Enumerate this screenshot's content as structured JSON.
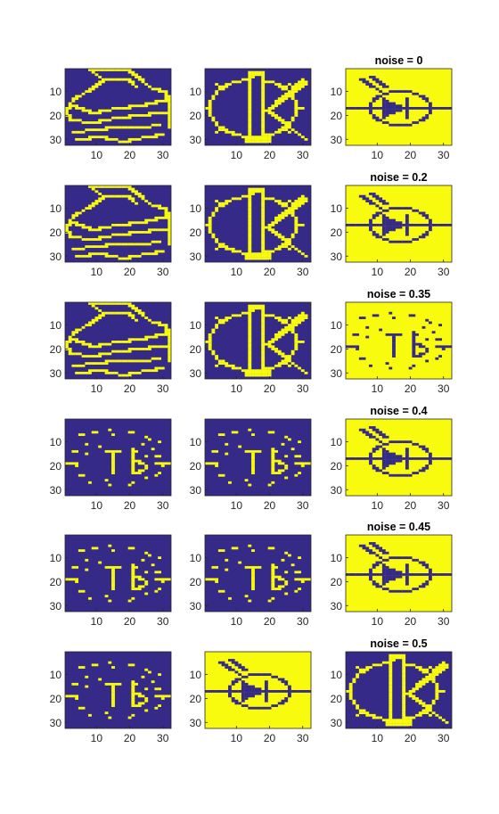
{
  "figure": {
    "colors": {
      "background_class": "#352a87",
      "foreground_class": "#f9fb0e"
    },
    "axis_ticks": {
      "x": [
        "10",
        "20",
        "30"
      ],
      "y": [
        "10",
        "20",
        "30"
      ]
    }
  },
  "chart_data": [
    {
      "type": "heatmap",
      "row": 1,
      "column": 1,
      "title": "",
      "pattern": "printer",
      "polarity": "pattern-yellow-on-blue",
      "xlim": [
        0.5,
        32.5
      ],
      "ylim": [
        0.5,
        32.5
      ],
      "y_reversed": true
    },
    {
      "type": "heatmap",
      "row": 1,
      "column": 2,
      "title": "",
      "pattern": "k-logo",
      "polarity": "pattern-yellow-on-blue",
      "xlim": [
        0.5,
        32.5
      ],
      "ylim": [
        0.5,
        32.5
      ],
      "y_reversed": true
    },
    {
      "type": "heatmap",
      "row": 1,
      "column": 3,
      "title": "noise = 0",
      "pattern": "diode",
      "polarity": "pattern-blue-on-yellow",
      "xlim": [
        0.5,
        32.5
      ],
      "ylim": [
        0.5,
        32.5
      ],
      "y_reversed": true
    },
    {
      "type": "heatmap",
      "row": 2,
      "column": 1,
      "title": "",
      "pattern": "printer",
      "polarity": "pattern-yellow-on-blue",
      "xlim": [
        0.5,
        32.5
      ],
      "ylim": [
        0.5,
        32.5
      ],
      "y_reversed": true
    },
    {
      "type": "heatmap",
      "row": 2,
      "column": 2,
      "title": "",
      "pattern": "k-logo",
      "polarity": "pattern-yellow-on-blue",
      "xlim": [
        0.5,
        32.5
      ],
      "ylim": [
        0.5,
        32.5
      ],
      "y_reversed": true
    },
    {
      "type": "heatmap",
      "row": 2,
      "column": 3,
      "title": "noise = 0.2",
      "pattern": "diode",
      "polarity": "pattern-blue-on-yellow",
      "xlim": [
        0.5,
        32.5
      ],
      "ylim": [
        0.5,
        32.5
      ],
      "y_reversed": true
    },
    {
      "type": "heatmap",
      "row": 3,
      "column": 1,
      "title": "",
      "pattern": "printer",
      "polarity": "pattern-yellow-on-blue",
      "xlim": [
        0.5,
        32.5
      ],
      "ylim": [
        0.5,
        32.5
      ],
      "y_reversed": true
    },
    {
      "type": "heatmap",
      "row": 3,
      "column": 2,
      "title": "",
      "pattern": "k-logo",
      "polarity": "pattern-yellow-on-blue",
      "xlim": [
        0.5,
        32.5
      ],
      "ylim": [
        0.5,
        32.5
      ],
      "y_reversed": true
    },
    {
      "type": "heatmap",
      "row": 3,
      "column": 3,
      "title": "noise = 0.35",
      "pattern": "diode-fragments",
      "polarity": "pattern-blue-on-yellow",
      "xlim": [
        0.5,
        32.5
      ],
      "ylim": [
        0.5,
        32.5
      ],
      "y_reversed": true
    },
    {
      "type": "heatmap",
      "row": 4,
      "column": 1,
      "title": "",
      "pattern": "diode-fragments",
      "polarity": "pattern-yellow-on-blue",
      "xlim": [
        0.5,
        32.5
      ],
      "ylim": [
        0.5,
        32.5
      ],
      "y_reversed": true
    },
    {
      "type": "heatmap",
      "row": 4,
      "column": 2,
      "title": "",
      "pattern": "diode-fragments",
      "polarity": "pattern-yellow-on-blue",
      "xlim": [
        0.5,
        32.5
      ],
      "ylim": [
        0.5,
        32.5
      ],
      "y_reversed": true
    },
    {
      "type": "heatmap",
      "row": 4,
      "column": 3,
      "title": "noise = 0.4",
      "pattern": "diode",
      "polarity": "pattern-blue-on-yellow",
      "xlim": [
        0.5,
        32.5
      ],
      "ylim": [
        0.5,
        32.5
      ],
      "y_reversed": true
    },
    {
      "type": "heatmap",
      "row": 5,
      "column": 1,
      "title": "",
      "pattern": "diode-fragments",
      "polarity": "pattern-yellow-on-blue",
      "xlim": [
        0.5,
        32.5
      ],
      "ylim": [
        0.5,
        32.5
      ],
      "y_reversed": true
    },
    {
      "type": "heatmap",
      "row": 5,
      "column": 2,
      "title": "",
      "pattern": "diode-fragments",
      "polarity": "pattern-yellow-on-blue",
      "xlim": [
        0.5,
        32.5
      ],
      "ylim": [
        0.5,
        32.5
      ],
      "y_reversed": true
    },
    {
      "type": "heatmap",
      "row": 5,
      "column": 3,
      "title": "noise = 0.45",
      "pattern": "diode",
      "polarity": "pattern-blue-on-yellow",
      "xlim": [
        0.5,
        32.5
      ],
      "ylim": [
        0.5,
        32.5
      ],
      "y_reversed": true
    },
    {
      "type": "heatmap",
      "row": 6,
      "column": 1,
      "title": "",
      "pattern": "diode-fragments",
      "polarity": "pattern-yellow-on-blue",
      "xlim": [
        0.5,
        32.5
      ],
      "ylim": [
        0.5,
        32.5
      ],
      "y_reversed": true
    },
    {
      "type": "heatmap",
      "row": 6,
      "column": 2,
      "title": "",
      "pattern": "diode",
      "polarity": "pattern-blue-on-yellow",
      "xlim": [
        0.5,
        32.5
      ],
      "ylim": [
        0.5,
        32.5
      ],
      "y_reversed": true
    },
    {
      "type": "heatmap",
      "row": 6,
      "column": 3,
      "title": "noise = 0.5",
      "pattern": "k-logo",
      "polarity": "pattern-yellow-on-blue",
      "xlim": [
        0.5,
        32.5
      ],
      "ylim": [
        0.5,
        32.5
      ],
      "y_reversed": true
    }
  ]
}
